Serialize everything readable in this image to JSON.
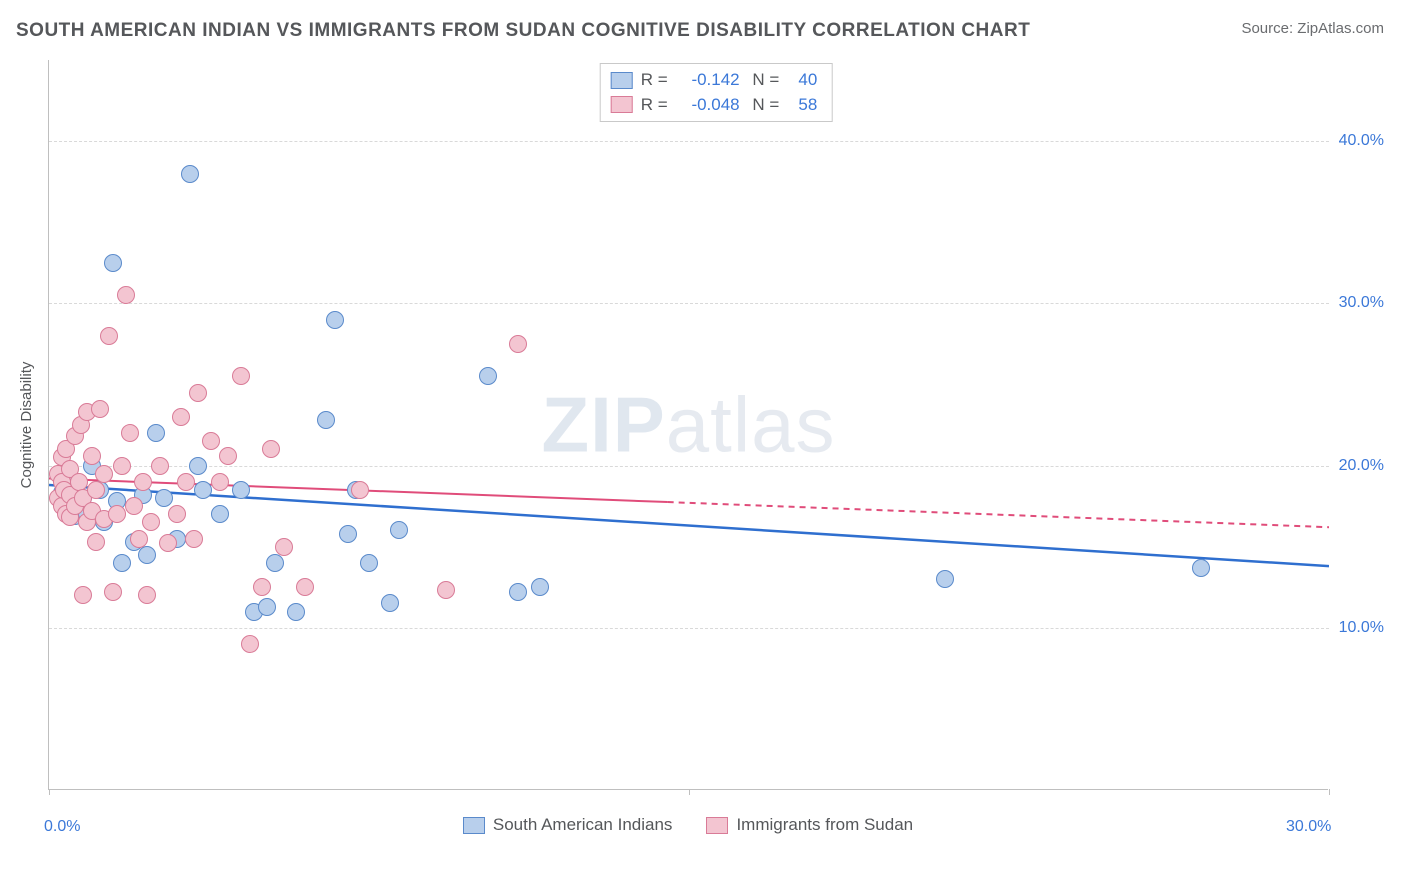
{
  "title": "SOUTH AMERICAN INDIAN VS IMMIGRANTS FROM SUDAN COGNITIVE DISABILITY CORRELATION CHART",
  "source": "Source: ZipAtlas.com",
  "watermark": {
    "bold": "ZIP",
    "light": "atlas"
  },
  "chart": {
    "type": "scatter",
    "xlim": [
      0,
      30
    ],
    "ylim": [
      0,
      45
    ],
    "xticks": [
      0,
      15,
      30
    ],
    "xtick_labels": [
      "0.0%",
      "",
      "30.0%"
    ],
    "yticks": [
      10,
      20,
      30,
      40
    ],
    "ytick_labels": [
      "10.0%",
      "20.0%",
      "30.0%",
      "40.0%"
    ],
    "ylabel": "Cognitive Disability",
    "grid_color": "#d9d9d9",
    "axis_color": "#bfbfbf",
    "background_color": "#ffffff",
    "marker_size": 18,
    "series": [
      {
        "name": "South American Indians",
        "fill": "#b8cfec",
        "stroke": "#5a8acb",
        "R": "-0.142",
        "N": "40",
        "trend": {
          "y_at_x0": 18.8,
          "y_at_x30": 13.8,
          "solid_until_x": 30,
          "color": "#2f6fcf",
          "width": 2.5
        },
        "points": [
          [
            0.3,
            18.3
          ],
          [
            0.4,
            17.2
          ],
          [
            0.4,
            19.0
          ],
          [
            0.6,
            16.9
          ],
          [
            0.8,
            18.0
          ],
          [
            0.9,
            17.0
          ],
          [
            1.0,
            20.0
          ],
          [
            1.2,
            18.5
          ],
          [
            1.3,
            16.5
          ],
          [
            1.5,
            32.5
          ],
          [
            1.6,
            17.8
          ],
          [
            1.7,
            14.0
          ],
          [
            2.0,
            15.3
          ],
          [
            2.2,
            18.2
          ],
          [
            2.3,
            14.5
          ],
          [
            2.5,
            22.0
          ],
          [
            2.7,
            18.0
          ],
          [
            3.0,
            15.5
          ],
          [
            3.3,
            38.0
          ],
          [
            3.5,
            20.0
          ],
          [
            3.6,
            18.5
          ],
          [
            4.0,
            17.0
          ],
          [
            4.5,
            18.5
          ],
          [
            4.8,
            11.0
          ],
          [
            5.1,
            11.3
          ],
          [
            5.3,
            14.0
          ],
          [
            5.8,
            11.0
          ],
          [
            6.5,
            22.8
          ],
          [
            6.7,
            29.0
          ],
          [
            7.0,
            15.8
          ],
          [
            7.2,
            18.5
          ],
          [
            7.5,
            14.0
          ],
          [
            8.0,
            11.5
          ],
          [
            8.2,
            16.0
          ],
          [
            10.3,
            25.5
          ],
          [
            11.0,
            12.2
          ],
          [
            11.5,
            12.5
          ],
          [
            21.0,
            13.0
          ],
          [
            27.0,
            13.7
          ]
        ]
      },
      {
        "name": "Immigrants from Sudan",
        "fill": "#f3c5d1",
        "stroke": "#d97b97",
        "R": "-0.048",
        "N": "58",
        "trend": {
          "y_at_x0": 19.2,
          "y_at_x30": 16.2,
          "solid_until_x": 14.5,
          "color": "#e04c7a",
          "width": 2
        },
        "points": [
          [
            0.2,
            19.5
          ],
          [
            0.2,
            18.0
          ],
          [
            0.3,
            20.5
          ],
          [
            0.3,
            17.5
          ],
          [
            0.3,
            19.0
          ],
          [
            0.35,
            18.5
          ],
          [
            0.4,
            21.0
          ],
          [
            0.4,
            17.0
          ],
          [
            0.5,
            19.8
          ],
          [
            0.5,
            18.2
          ],
          [
            0.5,
            16.8
          ],
          [
            0.6,
            21.8
          ],
          [
            0.6,
            17.5
          ],
          [
            0.7,
            19.0
          ],
          [
            0.75,
            22.5
          ],
          [
            0.8,
            18.0
          ],
          [
            0.8,
            12.0
          ],
          [
            0.9,
            23.3
          ],
          [
            0.9,
            16.5
          ],
          [
            1.0,
            20.6
          ],
          [
            1.0,
            17.2
          ],
          [
            1.1,
            15.3
          ],
          [
            1.1,
            18.5
          ],
          [
            1.2,
            23.5
          ],
          [
            1.3,
            19.5
          ],
          [
            1.3,
            16.7
          ],
          [
            1.4,
            28.0
          ],
          [
            1.5,
            12.2
          ],
          [
            1.6,
            17.0
          ],
          [
            1.7,
            20.0
          ],
          [
            1.8,
            30.5
          ],
          [
            1.9,
            22.0
          ],
          [
            2.0,
            17.5
          ],
          [
            2.1,
            15.5
          ],
          [
            2.2,
            19.0
          ],
          [
            2.3,
            12.0
          ],
          [
            2.4,
            16.5
          ],
          [
            2.6,
            20.0
          ],
          [
            2.8,
            15.2
          ],
          [
            3.0,
            17.0
          ],
          [
            3.1,
            23.0
          ],
          [
            3.2,
            19.0
          ],
          [
            3.4,
            15.5
          ],
          [
            3.5,
            24.5
          ],
          [
            3.8,
            21.5
          ],
          [
            4.0,
            19.0
          ],
          [
            4.2,
            20.6
          ],
          [
            4.5,
            25.5
          ],
          [
            4.7,
            9.0
          ],
          [
            5.0,
            12.5
          ],
          [
            5.2,
            21.0
          ],
          [
            5.5,
            15.0
          ],
          [
            6.0,
            12.5
          ],
          [
            7.3,
            18.5
          ],
          [
            9.3,
            12.3
          ],
          [
            11.0,
            27.5
          ]
        ]
      }
    ]
  },
  "legend_bottom": [
    {
      "label": "South American Indians",
      "fill": "#b8cfec",
      "stroke": "#5a8acb"
    },
    {
      "label": "Immigrants from Sudan",
      "fill": "#f3c5d1",
      "stroke": "#d97b97"
    }
  ]
}
